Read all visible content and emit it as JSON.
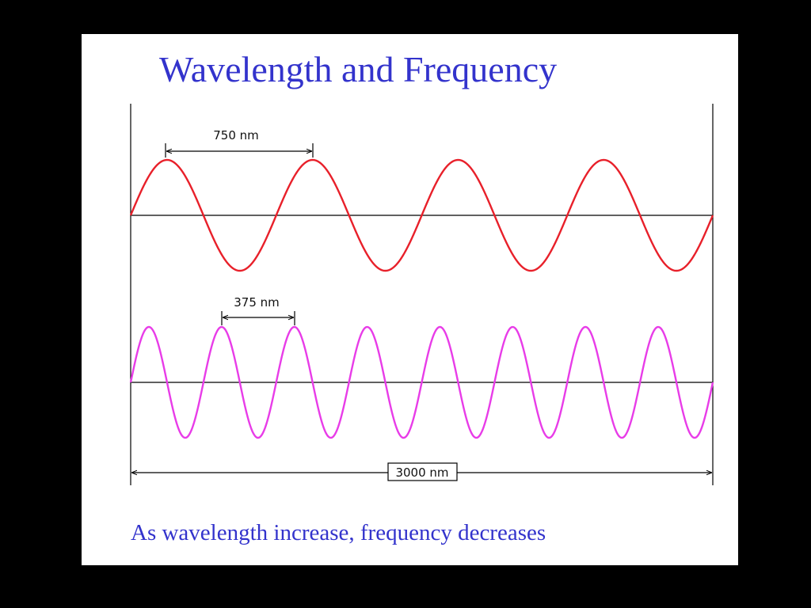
{
  "slide": {
    "title": "Wavelength and Frequency",
    "caption": "As wavelength increase, frequency decreases"
  },
  "diagram": {
    "total_length_label": "3000 nm",
    "total_length_nm": 3000,
    "waves": [
      {
        "name": "long-wave",
        "wavelength_nm": 750,
        "label": "750 nm",
        "color": "#e8202a"
      },
      {
        "name": "short-wave",
        "wavelength_nm": 375,
        "label": "375 nm",
        "color": "#e83ce8"
      }
    ],
    "axis_color": "#000000"
  }
}
